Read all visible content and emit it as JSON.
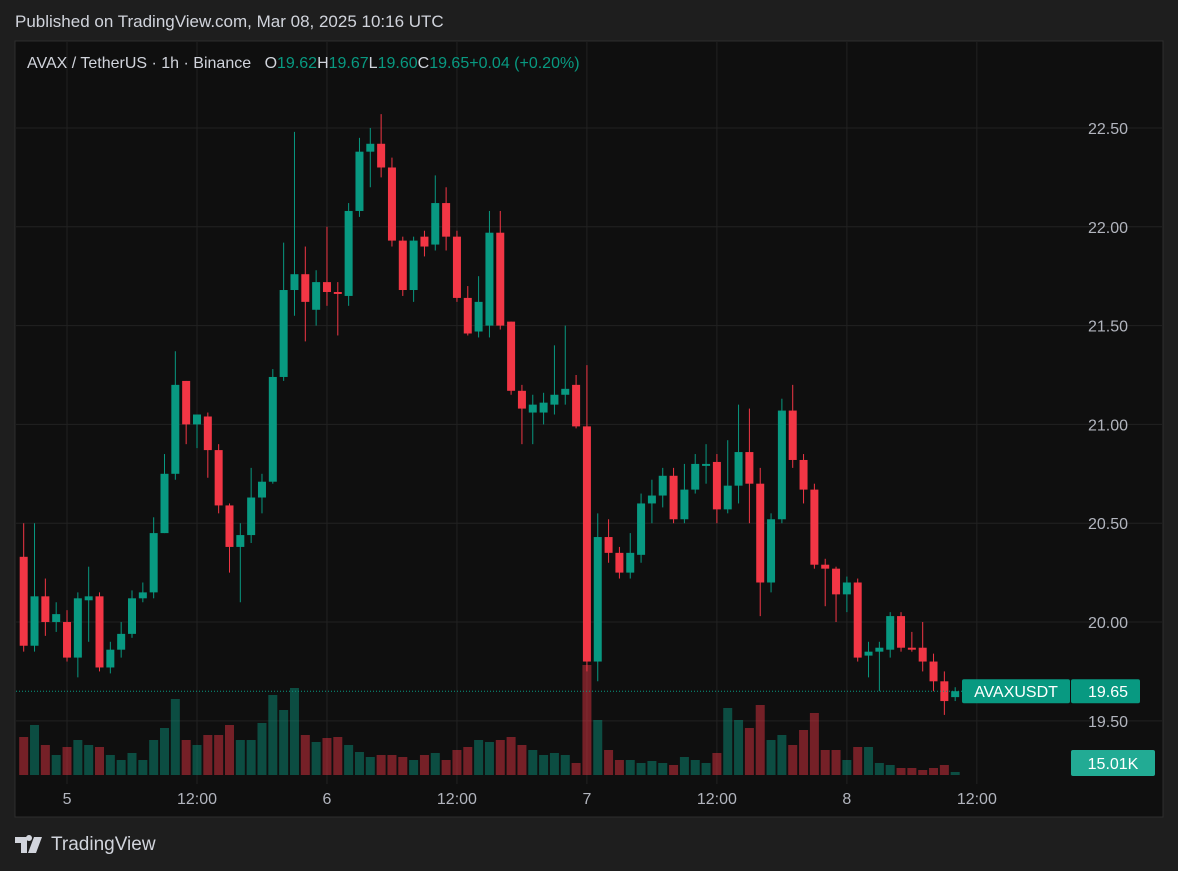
{
  "header": {
    "published": "Published on TradingView.com, Mar 08, 2025 10:16 UTC"
  },
  "footer": {
    "brand": "TradingView"
  },
  "chart_data": {
    "type": "candlestick",
    "title": "AVAX / TetherUS · 1h · Binance",
    "legend": [
      {
        "key": "O",
        "value": "19.62"
      },
      {
        "key": "H",
        "value": "19.67"
      },
      {
        "key": "L",
        "value": "19.60"
      },
      {
        "key": "C",
        "value": "19.65"
      }
    ],
    "change": "+0.04 (+0.20%)",
    "series": [
      {
        "name": "AVAXUSDT",
        "up_color": "#089981",
        "down_color": "#f23645",
        "open": [
          20.33,
          19.88,
          20.13,
          20.0,
          20.0,
          19.82,
          20.11,
          20.13,
          19.77,
          19.86,
          19.94,
          20.12,
          20.15,
          20.45,
          20.75,
          21.22,
          21.0,
          21.04,
          20.87,
          20.59,
          20.38,
          20.44,
          20.63,
          20.71,
          21.24,
          21.68,
          21.76,
          21.58,
          21.72,
          21.67,
          21.65,
          22.08,
          22.38,
          22.42,
          22.3,
          21.93,
          21.68,
          21.95,
          21.91,
          22.12,
          21.95,
          21.64,
          21.47,
          21.5,
          21.97,
          21.52,
          21.17,
          21.06,
          21.06,
          21.1,
          21.15,
          21.2,
          20.99,
          19.8,
          20.43,
          20.35,
          20.25,
          20.34,
          20.6,
          20.64,
          20.74,
          20.52,
          20.67,
          20.79,
          20.81,
          20.57,
          20.69,
          20.86,
          20.7,
          20.2,
          20.52,
          21.07,
          20.82,
          20.67,
          20.29,
          20.27,
          20.14,
          20.2,
          19.83,
          19.85,
          19.86,
          20.03,
          19.87,
          19.87,
          19.8,
          19.7,
          19.62
        ],
        "high": [
          20.5,
          20.5,
          20.22,
          20.1,
          20.06,
          20.15,
          20.28,
          20.15,
          19.9,
          20.0,
          20.16,
          20.2,
          20.53,
          20.85,
          21.37,
          21.22,
          21.05,
          21.06,
          20.9,
          20.6,
          20.5,
          20.78,
          20.75,
          21.28,
          21.92,
          22.48,
          21.9,
          21.78,
          22.0,
          21.72,
          22.12,
          22.45,
          22.5,
          22.57,
          22.35,
          21.95,
          21.95,
          21.98,
          22.26,
          22.2,
          21.98,
          21.7,
          21.75,
          22.08,
          22.08,
          21.52,
          21.2,
          21.15,
          21.16,
          21.4,
          21.5,
          21.25,
          21.3,
          20.55,
          20.52,
          20.38,
          20.45,
          20.65,
          20.72,
          20.78,
          20.78,
          20.8,
          20.85,
          20.9,
          20.85,
          20.92,
          21.1,
          21.08,
          20.78,
          20.55,
          21.13,
          21.2,
          20.85,
          20.7,
          20.32,
          20.28,
          20.23,
          20.22,
          19.9,
          19.9,
          20.05,
          20.05,
          19.95,
          20.0,
          19.84,
          19.75,
          19.67
        ],
        "low": [
          19.85,
          19.85,
          19.93,
          19.95,
          19.8,
          19.72,
          19.9,
          19.75,
          19.74,
          19.82,
          19.92,
          20.1,
          20.12,
          20.45,
          20.72,
          20.9,
          20.88,
          20.73,
          20.55,
          20.25,
          20.1,
          20.4,
          20.55,
          20.7,
          21.22,
          21.55,
          21.42,
          21.5,
          21.6,
          21.45,
          21.6,
          22.05,
          22.2,
          22.25,
          21.9,
          21.65,
          21.62,
          21.85,
          21.88,
          21.88,
          21.62,
          21.45,
          21.44,
          21.44,
          21.48,
          21.15,
          20.9,
          20.9,
          21.0,
          21.05,
          21.1,
          20.98,
          19.75,
          19.7,
          20.3,
          20.22,
          20.22,
          20.3,
          20.5,
          20.58,
          20.5,
          20.5,
          20.65,
          20.7,
          20.5,
          20.55,
          20.6,
          20.5,
          20.03,
          20.15,
          20.5,
          20.78,
          20.6,
          20.27,
          20.08,
          20.0,
          20.05,
          19.8,
          19.72,
          19.65,
          19.82,
          19.85,
          19.85,
          19.75,
          19.65,
          19.53,
          19.6
        ],
        "close": [
          19.88,
          20.13,
          20.0,
          20.04,
          19.82,
          20.12,
          20.13,
          19.77,
          19.86,
          19.94,
          20.12,
          20.15,
          20.45,
          20.75,
          21.2,
          21.0,
          21.05,
          20.87,
          20.59,
          20.38,
          20.44,
          20.63,
          20.71,
          21.24,
          21.68,
          21.76,
          21.62,
          21.72,
          21.67,
          21.66,
          22.08,
          22.38,
          22.42,
          22.3,
          21.93,
          21.68,
          21.93,
          21.9,
          22.12,
          21.95,
          21.64,
          21.46,
          21.62,
          21.97,
          21.5,
          21.17,
          21.08,
          21.1,
          21.11,
          21.15,
          21.18,
          20.99,
          19.8,
          20.43,
          20.35,
          20.25,
          20.35,
          20.6,
          20.64,
          20.74,
          20.52,
          20.67,
          20.8,
          20.8,
          20.57,
          20.69,
          20.86,
          20.7,
          20.2,
          20.52,
          21.07,
          20.82,
          20.67,
          20.29,
          20.27,
          20.14,
          20.2,
          19.82,
          19.85,
          19.87,
          20.03,
          19.87,
          19.86,
          19.8,
          19.7,
          19.6,
          19.65
        ],
        "volume": [
          190000,
          250000,
          150000,
          100000,
          140000,
          175000,
          150000,
          140000,
          100000,
          75000,
          110000,
          75000,
          175000,
          235000,
          380000,
          175000,
          150000,
          200000,
          200000,
          250000,
          175000,
          175000,
          260000,
          400000,
          325000,
          435000,
          200000,
          165000,
          185000,
          190000,
          150000,
          115000,
          90000,
          100000,
          100000,
          90000,
          75000,
          100000,
          110000,
          75000,
          125000,
          140000,
          175000,
          165000,
          175000,
          190000,
          150000,
          125000,
          100000,
          110000,
          100000,
          60000,
          550000,
          275000,
          125000,
          75000,
          75000,
          60000,
          70000,
          60000,
          50000,
          90000,
          75000,
          60000,
          110000,
          335000,
          275000,
          235000,
          350000,
          175000,
          200000,
          150000,
          225000,
          310000,
          125000,
          125000,
          75000,
          140000,
          140000,
          60000,
          50000,
          35000,
          35000,
          25000,
          35000,
          50000,
          15010
        ],
        "volume_label": "15.01K"
      }
    ],
    "xlim": [
      -0.71,
      96.6
    ],
    "xticks": [
      {
        "value": 4,
        "label": "5"
      },
      {
        "value": 16,
        "label": "12:00"
      },
      {
        "value": 28,
        "label": "6"
      },
      {
        "value": 40,
        "label": "12:00"
      },
      {
        "value": 52,
        "label": "7"
      },
      {
        "value": 64,
        "label": "12:00"
      },
      {
        "value": 76,
        "label": "8"
      },
      {
        "value": 88,
        "label": "12:00"
      }
    ],
    "ylim": [
      19.15,
      22.935
    ],
    "yticks": [
      {
        "value": 19.5,
        "label": "19.50"
      },
      {
        "value": 20,
        "label": "20.00"
      },
      {
        "value": 20.5,
        "label": "20.50"
      },
      {
        "value": 21,
        "label": "21.00"
      },
      {
        "value": 21.5,
        "label": "21.50"
      },
      {
        "value": 22,
        "label": "22.00"
      },
      {
        "value": 22.5,
        "label": "22.50"
      }
    ],
    "grid": true
  }
}
